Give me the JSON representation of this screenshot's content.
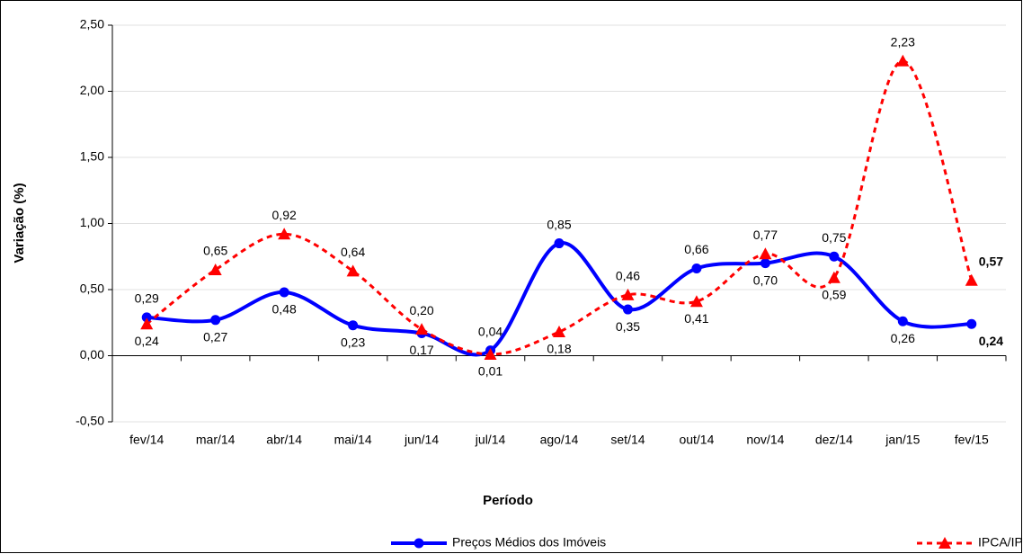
{
  "chart_data": {
    "type": "line",
    "x_label": "Período",
    "y_label": "Variação (%)",
    "categories": [
      "fev/14",
      "mar/14",
      "abr/14",
      "mai/14",
      "jun/14",
      "jul/14",
      "ago/14",
      "set/14",
      "out/14",
      "nov/14",
      "dez/14",
      "jan/15",
      "fev/15"
    ],
    "series": [
      {
        "name": "Preços Médios dos Imóveis",
        "color": "#0000ff",
        "marker": "circle",
        "dashed": false,
        "values": [
          0.29,
          0.27,
          0.48,
          0.23,
          0.17,
          0.04,
          0.85,
          0.35,
          0.66,
          0.7,
          0.75,
          0.26,
          0.24
        ],
        "value_labels": [
          "0,29",
          "0,27",
          "0,48",
          "0,23",
          "0,17",
          "0,04",
          "0,85",
          "0,35",
          "0,66",
          "0,70",
          "0,75",
          "0,26",
          "0,24"
        ]
      },
      {
        "name": "IPCA/IPEAD",
        "color": "#ff0000",
        "marker": "triangle",
        "dashed": true,
        "values": [
          0.24,
          0.65,
          0.92,
          0.64,
          0.2,
          0.01,
          0.18,
          0.46,
          0.41,
          0.77,
          0.59,
          2.23,
          0.57
        ],
        "value_labels": [
          "0,24",
          "0,65",
          "0,92",
          "0,64",
          "0,20",
          "0,01",
          "0,18",
          "0,46",
          "0,41",
          "0,77",
          "0,59",
          "2,23",
          "0,57"
        ]
      }
    ],
    "ylim": [
      -0.5,
      2.5
    ],
    "yticks": [
      {
        "value": -0.5,
        "label": "-0,50"
      },
      {
        "value": 0,
        "label": "0,00"
      },
      {
        "value": 0.5,
        "label": "0,50"
      },
      {
        "value": 1,
        "label": "1,00"
      },
      {
        "value": 1.5,
        "label": "1,50"
      },
      {
        "value": 2,
        "label": "2,00"
      },
      {
        "value": 2.5,
        "label": "2,50"
      }
    ],
    "grid": true
  }
}
